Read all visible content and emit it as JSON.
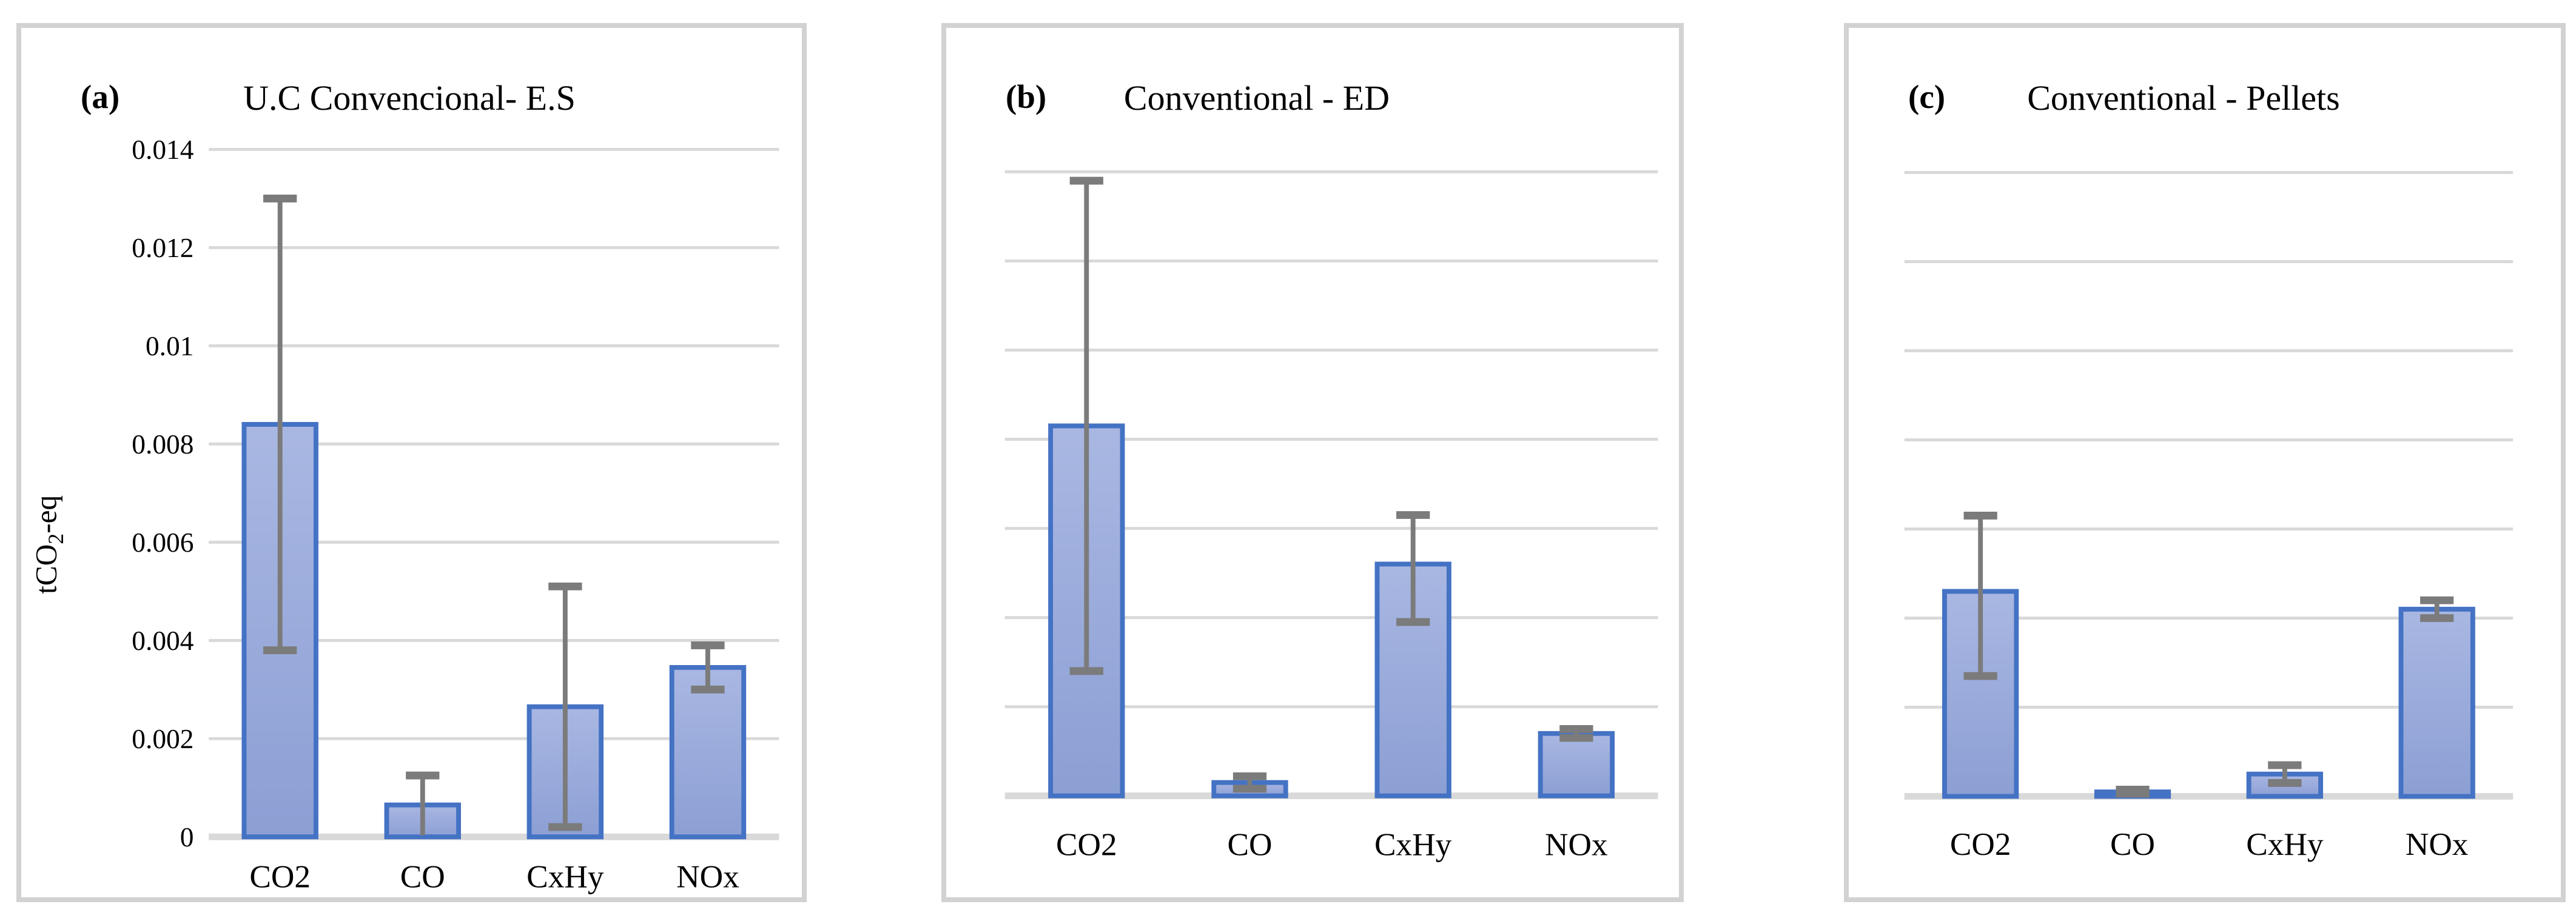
{
  "figure": {
    "background": "#ffffff",
    "unit_label": "tCO2-eq"
  },
  "colors": {
    "bar_fill_top": "#a9b7e2",
    "bar_fill_bottom": "#8c9fd4",
    "bar_border": "#4472c4",
    "error_bar": "#7b7b7b",
    "gridline": "#d9d9d9",
    "axis_line": "#d9d9d9",
    "frame_border": "#d2d2d2",
    "text": "#000000"
  },
  "chart_data": [
    {
      "type": "bar",
      "panel_label": "(a)",
      "title": "U.C Convencional- E.S",
      "xlabel": "",
      "ylabel": "tCO2-eq",
      "categories": [
        "CO2",
        "CO",
        "CxHy",
        "NOx"
      ],
      "values": [
        0.0084,
        0.00065,
        0.00265,
        0.00345
      ],
      "error_low": [
        0.0038,
        3e-05,
        0.0002,
        0.003
      ],
      "error_high": [
        0.013,
        0.00125,
        0.0051,
        0.0039
      ],
      "ylim": [
        0,
        0.014
      ],
      "gridline_step": 0.002,
      "ytick_labels": [
        "0",
        "0.002",
        "0.004",
        "0.006",
        "0.008",
        "0.01",
        "0.012",
        "0.014"
      ],
      "grid": true,
      "legend": null
    },
    {
      "type": "bar",
      "panel_label": "(b)",
      "title": "Conventional - ED",
      "xlabel": "",
      "ylabel": "",
      "categories": [
        "CO2",
        "CO",
        "CxHy",
        "NOx"
      ],
      "values": [
        0.0083,
        0.0003,
        0.0052,
        0.0014
      ],
      "error_low": [
        0.0028,
        0.00016,
        0.0039,
        0.0013
      ],
      "error_high": [
        0.0138,
        0.00044,
        0.0063,
        0.0015
      ],
      "ylim": [
        0,
        0.014
      ],
      "gridline_step": 0.002,
      "ytick_labels": [],
      "grid": true,
      "legend": null
    },
    {
      "type": "bar",
      "panel_label": "(c)",
      "title": "Conventional - Pellets",
      "xlabel": "",
      "ylabel": "",
      "categories": [
        "CO2",
        "CO",
        "CxHy",
        "NOx"
      ],
      "values": [
        0.0046,
        0.0001,
        0.0005,
        0.0042
      ],
      "error_low": [
        0.0027,
        6e-05,
        0.0003,
        0.004
      ],
      "error_high": [
        0.0063,
        0.00015,
        0.0007,
        0.0044
      ],
      "ylim": [
        0,
        0.014
      ],
      "gridline_step": 0.002,
      "ytick_labels": [],
      "grid": true,
      "legend": null
    }
  ]
}
